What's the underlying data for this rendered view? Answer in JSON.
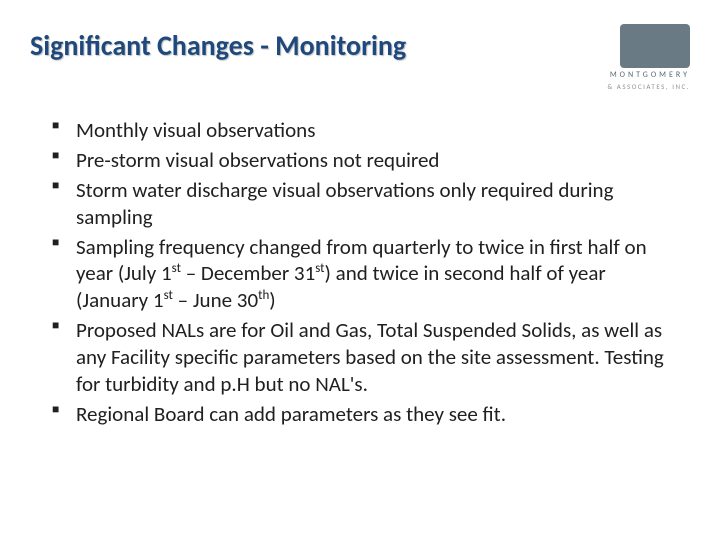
{
  "title": "Significant Changes - Monitoring",
  "logo": {
    "name": "MONTGOMERY",
    "sub": "& ASSOCIATES, INC."
  },
  "bullets": [
    {
      "html": "Monthly visual observations"
    },
    {
      "html": "Pre-storm visual observations not required"
    },
    {
      "html": "Storm water discharge visual observations only required during sampling"
    },
    {
      "html": "Sampling frequency changed from quarterly to twice in first half on year (July 1<sup>st</sup> – December 31<sup>st</sup>) and twice in second half of year (January 1<sup>st</sup> – June 30<sup>th</sup>)"
    },
    {
      "html": "Proposed NALs are for Oil and Gas, Total Suspended Solids, as well as any Facility specific parameters based on the site assessment.  Testing for turbidity and p.H but no NAL's."
    },
    {
      "html": "Regional Board can add parameters as they see fit."
    }
  ],
  "colors": {
    "title": "#1f497d",
    "text": "#202020",
    "logo_bg": "#6a7a84",
    "logo_text": "#5b6a72",
    "logo_sub": "#8a9399",
    "background": "#ffffff"
  },
  "typography": {
    "title_fontsize": 28,
    "bullet_fontsize": 21,
    "title_weight": 700
  }
}
